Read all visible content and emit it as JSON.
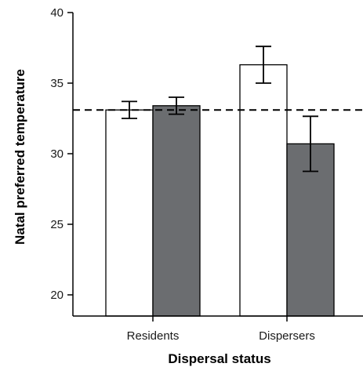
{
  "chart_data": {
    "type": "bar",
    "xlabel": "Dispersal status",
    "ylabel": "Natal preferred temperature",
    "categories": [
      "Residents",
      "Dispersers"
    ],
    "series": [
      {
        "values": [
          33.1,
          36.3
        ],
        "errors": [
          0.6,
          1.3
        ],
        "color": "#ffffff"
      },
      {
        "values": [
          33.4,
          30.7
        ],
        "errors": [
          0.6,
          1.95
        ],
        "color": "#6b6d70"
      }
    ],
    "reference_line": 33.1,
    "ylim": [
      18.5,
      40
    ],
    "yticks": [
      20,
      25,
      30,
      35,
      40
    ],
    "grid": false,
    "legend": "none"
  }
}
